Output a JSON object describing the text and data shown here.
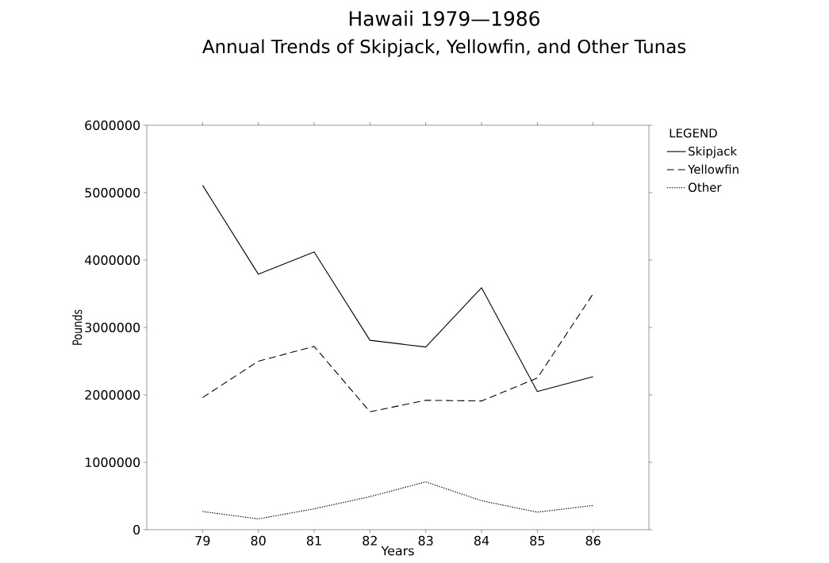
{
  "chart_data": {
    "type": "line",
    "title": "Hawaii 1979—1986",
    "subtitle": "Annual Trends of Skipjack, Yellowfin, and Other Tunas",
    "xlabel": "Years",
    "ylabel": "Pounds",
    "legend_title": "LEGEND",
    "legend": "right",
    "x": [
      79,
      80,
      81,
      82,
      83,
      84,
      85,
      86
    ],
    "xlim": [
      78,
      87
    ],
    "xticks": [
      79,
      80,
      81,
      82,
      83,
      84,
      85,
      86
    ],
    "ylim": [
      0,
      6000000
    ],
    "yticks": [
      0,
      1000000,
      2000000,
      3000000,
      4000000,
      5000000,
      6000000
    ],
    "grid": false,
    "marker": "none",
    "series": [
      {
        "name": "Skipjack",
        "color": "#000000",
        "line_style": "solid",
        "values": [
          5110000,
          3790000,
          4120000,
          2810000,
          2710000,
          3590000,
          2050000,
          2270000
        ]
      },
      {
        "name": "Yellowfin",
        "color": "#000000",
        "line_style": "dashed",
        "values": [
          1960000,
          2500000,
          2720000,
          1750000,
          1920000,
          1910000,
          2250000,
          3500000
        ]
      },
      {
        "name": "Other",
        "color": "#000000",
        "line_style": "dotted",
        "values": [
          270000,
          160000,
          310000,
          490000,
          710000,
          430000,
          260000,
          360000
        ]
      }
    ]
  }
}
